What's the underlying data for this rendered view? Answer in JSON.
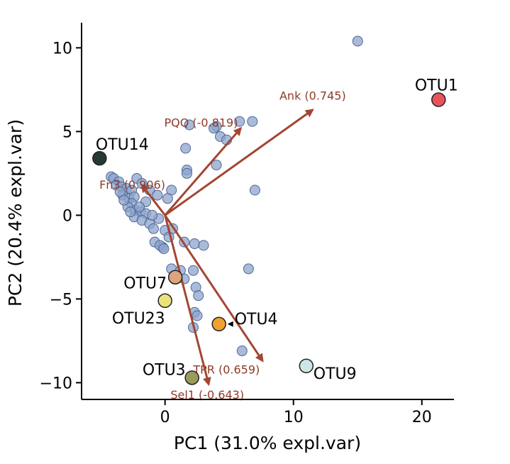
{
  "chart_data": {
    "type": "scatter",
    "title": "",
    "xlabel": "PC1 (31.0% expl.var)",
    "ylabel": "PC2 (20.4% expl.var)",
    "xlim": [
      -6.5,
      22.5
    ],
    "ylim": [
      -11,
      11.5
    ],
    "xticks": [
      0,
      10,
      20
    ],
    "yticks": [
      -10,
      -5,
      0,
      5,
      10
    ],
    "grid": false,
    "background_points": [
      [
        15.0,
        10.4
      ],
      [
        6.8,
        5.6
      ],
      [
        5.8,
        5.6
      ],
      [
        4.0,
        5.3
      ],
      [
        3.8,
        5.2
      ],
      [
        1.9,
        5.4
      ],
      [
        4.3,
        4.7
      ],
      [
        4.8,
        4.5
      ],
      [
        1.6,
        4.0
      ],
      [
        4.0,
        3.0
      ],
      [
        1.7,
        2.7
      ],
      [
        1.7,
        2.5
      ],
      [
        7.0,
        1.5
      ],
      [
        6.5,
        -3.2
      ],
      [
        -4.2,
        2.3
      ],
      [
        -4.0,
        2.2
      ],
      [
        -3.6,
        2.0
      ],
      [
        -3.8,
        1.8
      ],
      [
        -3.4,
        1.7
      ],
      [
        -3.0,
        1.6
      ],
      [
        -2.6,
        1.5
      ],
      [
        -3.3,
        1.2
      ],
      [
        -2.8,
        1.0
      ],
      [
        -2.4,
        1.1
      ],
      [
        -2.2,
        2.2
      ],
      [
        -1.8,
        1.9
      ],
      [
        -1.2,
        1.5
      ],
      [
        -0.6,
        1.2
      ],
      [
        0.5,
        1.5
      ],
      [
        0.2,
        1.0
      ],
      [
        -1.5,
        0.8
      ],
      [
        -2.6,
        0.7
      ],
      [
        -2.9,
        0.5
      ],
      [
        -2.3,
        0.3
      ],
      [
        -1.9,
        0.2
      ],
      [
        -1.5,
        0.1
      ],
      [
        -2.4,
        -0.1
      ],
      [
        -1.8,
        -0.3
      ],
      [
        -1.2,
        -0.5
      ],
      [
        -0.9,
        -0.8
      ],
      [
        -0.5,
        -0.2
      ],
      [
        0.0,
        -0.9
      ],
      [
        0.6,
        -0.8
      ],
      [
        0.3,
        -1.3
      ],
      [
        -0.8,
        -1.6
      ],
      [
        -0.2,
        -1.9
      ],
      [
        -0.4,
        -1.8
      ],
      [
        -0.1,
        -2.0
      ],
      [
        1.5,
        -1.6
      ],
      [
        2.3,
        -1.7
      ],
      [
        3.0,
        -1.8
      ],
      [
        0.5,
        -3.2
      ],
      [
        1.2,
        -3.3
      ],
      [
        2.2,
        -3.3
      ],
      [
        2.4,
        -4.3
      ],
      [
        2.6,
        -4.8
      ],
      [
        2.3,
        -5.8
      ],
      [
        2.5,
        -6.0
      ],
      [
        2.2,
        -6.7
      ],
      [
        1.5,
        -3.8
      ],
      [
        6.0,
        -8.1
      ],
      [
        -3.5,
        1.4
      ],
      [
        -2.0,
        0.5
      ],
      [
        -1.0,
        0.0
      ],
      [
        -3.2,
        0.9
      ],
      [
        -2.7,
        0.2
      ]
    ],
    "otus": [
      {
        "name": "OTU1",
        "x": 21.3,
        "y": 6.9,
        "color": "#e8545a"
      },
      {
        "name": "OTU14",
        "x": -5.1,
        "y": 3.4,
        "color": "#233b33"
      },
      {
        "name": "OTU7",
        "x": 0.8,
        "y": -3.7,
        "color": "#dca57d"
      },
      {
        "name": "OTU23",
        "x": 0.0,
        "y": -5.1,
        "color": "#eae37c"
      },
      {
        "name": "OTU4",
        "x": 4.2,
        "y": -6.5,
        "color": "#f0a12e"
      },
      {
        "name": "OTU3",
        "x": 2.1,
        "y": -9.7,
        "color": "#9a9a5c"
      },
      {
        "name": "OTU9",
        "x": 11.0,
        "y": -9.0,
        "color": "#cde6e6"
      }
    ],
    "vectors": [
      {
        "label": "Ank (0.745)",
        "x": 11.5,
        "y": 6.3
      },
      {
        "label": "PQQ (-0.819)",
        "x": 5.9,
        "y": 5.2
      },
      {
        "label": "Fn3 (0.906)",
        "x": -1.8,
        "y": 1.8
      },
      {
        "label": "TPR (0.659)",
        "x": 7.6,
        "y": -8.7
      },
      {
        "label": "Sel1 (-0.643)",
        "x": 3.4,
        "y": -10.1
      }
    ]
  }
}
